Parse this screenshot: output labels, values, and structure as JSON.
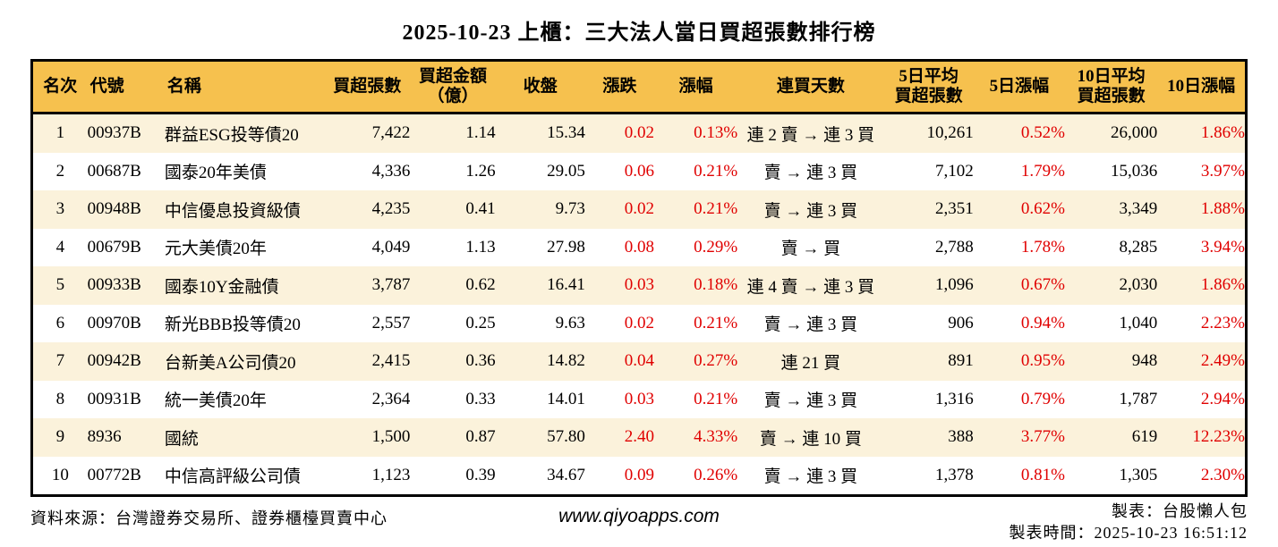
{
  "title": "2025-10-23 上櫃：三大法人當日買超張數排行榜",
  "colors": {
    "header_bg": "#f6c14e",
    "row_alt_bg": "#fbf2db",
    "row_bg": "#ffffff",
    "accent_red": "#e00000",
    "border": "#000000"
  },
  "table": {
    "columns": [
      {
        "id": "rank",
        "label": "名次"
      },
      {
        "id": "code",
        "label": "代號"
      },
      {
        "id": "name",
        "label": "名稱"
      },
      {
        "id": "net_volume",
        "label": "買超張數"
      },
      {
        "id": "net_amount",
        "label": "買超金額\n（億）"
      },
      {
        "id": "close",
        "label": "收盤"
      },
      {
        "id": "change",
        "label": "漲跌"
      },
      {
        "id": "change_pct",
        "label": "漲幅"
      },
      {
        "id": "streak",
        "label": "連買天數"
      },
      {
        "id": "avg5",
        "label": "5日平均\n買超張數"
      },
      {
        "id": "pct5",
        "label": "5日漲幅"
      },
      {
        "id": "avg10",
        "label": "10日平均\n買超張數"
      },
      {
        "id": "pct10",
        "label": "10日漲幅"
      }
    ],
    "rows": [
      [
        "1",
        "00937B",
        "群益ESG投等債20",
        "7,422",
        "1.14",
        "15.34",
        "0.02",
        "0.13%",
        "連 2 賣 → 連 3 買",
        "10,261",
        "0.52%",
        "26,000",
        "1.86%"
      ],
      [
        "2",
        "00687B",
        "國泰20年美債",
        "4,336",
        "1.26",
        "29.05",
        "0.06",
        "0.21%",
        "賣 → 連 3 買",
        "7,102",
        "1.79%",
        "15,036",
        "3.97%"
      ],
      [
        "3",
        "00948B",
        "中信優息投資級債",
        "4,235",
        "0.41",
        "9.73",
        "0.02",
        "0.21%",
        "賣 → 連 3 買",
        "2,351",
        "0.62%",
        "3,349",
        "1.88%"
      ],
      [
        "4",
        "00679B",
        "元大美債20年",
        "4,049",
        "1.13",
        "27.98",
        "0.08",
        "0.29%",
        "賣 → 買",
        "2,788",
        "1.78%",
        "8,285",
        "3.94%"
      ],
      [
        "5",
        "00933B",
        "國泰10Y金融債",
        "3,787",
        "0.62",
        "16.41",
        "0.03",
        "0.18%",
        "連 4 賣 → 連 3 買",
        "1,096",
        "0.67%",
        "2,030",
        "1.86%"
      ],
      [
        "6",
        "00970B",
        "新光BBB投等債20",
        "2,557",
        "0.25",
        "9.63",
        "0.02",
        "0.21%",
        "賣 → 連 3 買",
        "906",
        "0.94%",
        "1,040",
        "2.23%"
      ],
      [
        "7",
        "00942B",
        "台新美A公司債20",
        "2,415",
        "0.36",
        "14.82",
        "0.04",
        "0.27%",
        "連 21 買",
        "891",
        "0.95%",
        "948",
        "2.49%"
      ],
      [
        "8",
        "00931B",
        "統一美債20年",
        "2,364",
        "0.33",
        "14.01",
        "0.03",
        "0.21%",
        "賣 → 連 3 買",
        "1,316",
        "0.79%",
        "1,787",
        "2.94%"
      ],
      [
        "9",
        "8936",
        "國統",
        "1,500",
        "0.87",
        "57.80",
        "2.40",
        "4.33%",
        "賣 → 連 10 買",
        "388",
        "3.77%",
        "619",
        "12.23%"
      ],
      [
        "10",
        "00772B",
        "中信高評級公司債",
        "1,123",
        "0.39",
        "34.67",
        "0.09",
        "0.26%",
        "賣 → 連 3 買",
        "1,378",
        "0.81%",
        "1,305",
        "2.30%"
      ]
    ]
  },
  "footer": {
    "source": "資料來源：台灣證券交易所、證券櫃檯買賣中心",
    "website": "www.qiyoapps.com",
    "maker": "製表：台股懶人包",
    "made_at": "製表時間：2025-10-23 16:51:12"
  }
}
